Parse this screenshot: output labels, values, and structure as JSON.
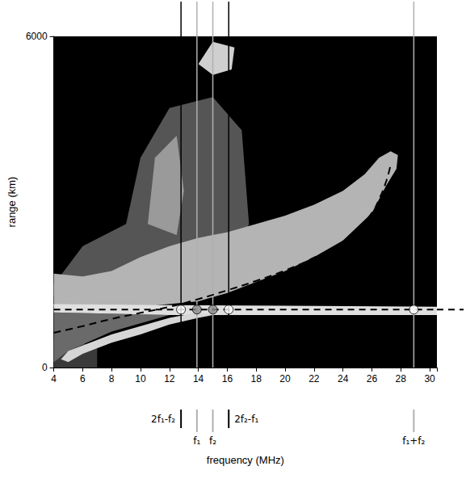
{
  "chart_data": {
    "type": "line",
    "xlabel": "frequency (MHz)",
    "ylabel": "range (km)",
    "xlim": [
      4,
      30.5
    ],
    "xticks": [
      4,
      6,
      8,
      10,
      12,
      14,
      16,
      18,
      20,
      22,
      24,
      26,
      28,
      30
    ],
    "ylim": [
      0,
      6000
    ],
    "yticks": [
      0,
      6000
    ],
    "grid": false,
    "echo_regions": [
      {
        "color": "#555555",
        "x": [
          4,
          6,
          9,
          10,
          12,
          15,
          17,
          17.5,
          16,
          4
        ],
        "y": [
          1500,
          2200,
          2600,
          3800,
          4700,
          4900,
          4300,
          2600,
          1500,
          1300
        ]
      },
      {
        "color": "#9a9a9a",
        "x": [
          10.5,
          11,
          12.5,
          13,
          12.5
        ],
        "y": [
          2600,
          3800,
          4200,
          3200,
          2400
        ]
      },
      {
        "color": "#cfcfcf",
        "x": [
          14,
          15,
          16.5,
          16.3,
          15
        ],
        "y": [
          5500,
          5900,
          5800,
          5400,
          5300
        ]
      },
      {
        "color": "#3a3a3a",
        "x": [
          4,
          7,
          7,
          4
        ],
        "y": [
          0,
          0,
          400,
          500
        ]
      },
      {
        "color": "#6a6a6a",
        "x": [
          4,
          4,
          12,
          8,
          5
        ],
        "y": [
          100,
          1000,
          950,
          650,
          300
        ]
      },
      {
        "color": "#b4b4b4",
        "x": [
          4,
          4,
          6,
          8,
          10,
          12,
          14,
          16,
          18,
          20,
          22,
          24,
          25.5,
          26.5,
          27.3,
          27.8,
          27.7,
          27,
          26,
          24,
          22,
          20,
          18,
          16,
          14,
          10,
          4
        ],
        "y": [
          1100,
          1700,
          1650,
          1750,
          2000,
          2200,
          2350,
          2450,
          2600,
          2750,
          2950,
          3200,
          3500,
          3800,
          3920,
          3850,
          3600,
          3300,
          2800,
          2300,
          2000,
          1750,
          1550,
          1350,
          1200,
          1100,
          1100
        ]
      },
      {
        "color": "#e0e0e0",
        "x": [
          4,
          12,
          20,
          30.5,
          30.5,
          20,
          12,
          4
        ],
        "y": [
          1000,
          950,
          950,
          950,
          1100,
          1120,
          1130,
          1150
        ]
      },
      {
        "color": "#d6d6d6",
        "x": [
          5,
          6,
          8,
          10,
          12,
          14,
          15,
          14,
          12,
          10,
          8,
          6,
          5,
          4.5
        ],
        "y": [
          100,
          250,
          450,
          600,
          780,
          900,
          950,
          1000,
          900,
          750,
          600,
          400,
          300,
          150
        ]
      }
    ],
    "series": [
      {
        "type": "line",
        "line_style": "dashed",
        "color": "#000000",
        "x": [
          4,
          6,
          8,
          10,
          12,
          14,
          16,
          18,
          20,
          22,
          24,
          25,
          26,
          26.5,
          27,
          27.3
        ],
        "values": [
          630,
          750,
          880,
          990,
          1100,
          1240,
          1400,
          1570,
          1760,
          1990,
          2280,
          2500,
          2800,
          3050,
          3380,
          3680
        ]
      },
      {
        "type": "scatter",
        "marker": "circle",
        "x": [
          12.8,
          13.9,
          15.0,
          16.1,
          28.9
        ],
        "values": [
          1050,
          1050,
          1050,
          1050,
          1050
        ],
        "colors": [
          "#ffffff",
          "#8a8a8a",
          "#8a8a8a",
          "#ffffff",
          "#ffffff"
        ]
      }
    ],
    "range_line": {
      "value": 1050,
      "line_style": "dashed",
      "color": "#000000"
    },
    "frequency_lines": [
      {
        "label": "2f₁-f₂",
        "x": 12.8,
        "color": "#000000"
      },
      {
        "label": "f₁",
        "x": 13.9,
        "color": "#b0b0b0"
      },
      {
        "label": "f₂",
        "x": 15.0,
        "color": "#b0b0b0"
      },
      {
        "label": "2f₂-f₁",
        "x": 16.1,
        "color": "#000000"
      },
      {
        "label": "f₁+f₂",
        "x": 28.9,
        "color": "#b0b0b0"
      }
    ]
  }
}
